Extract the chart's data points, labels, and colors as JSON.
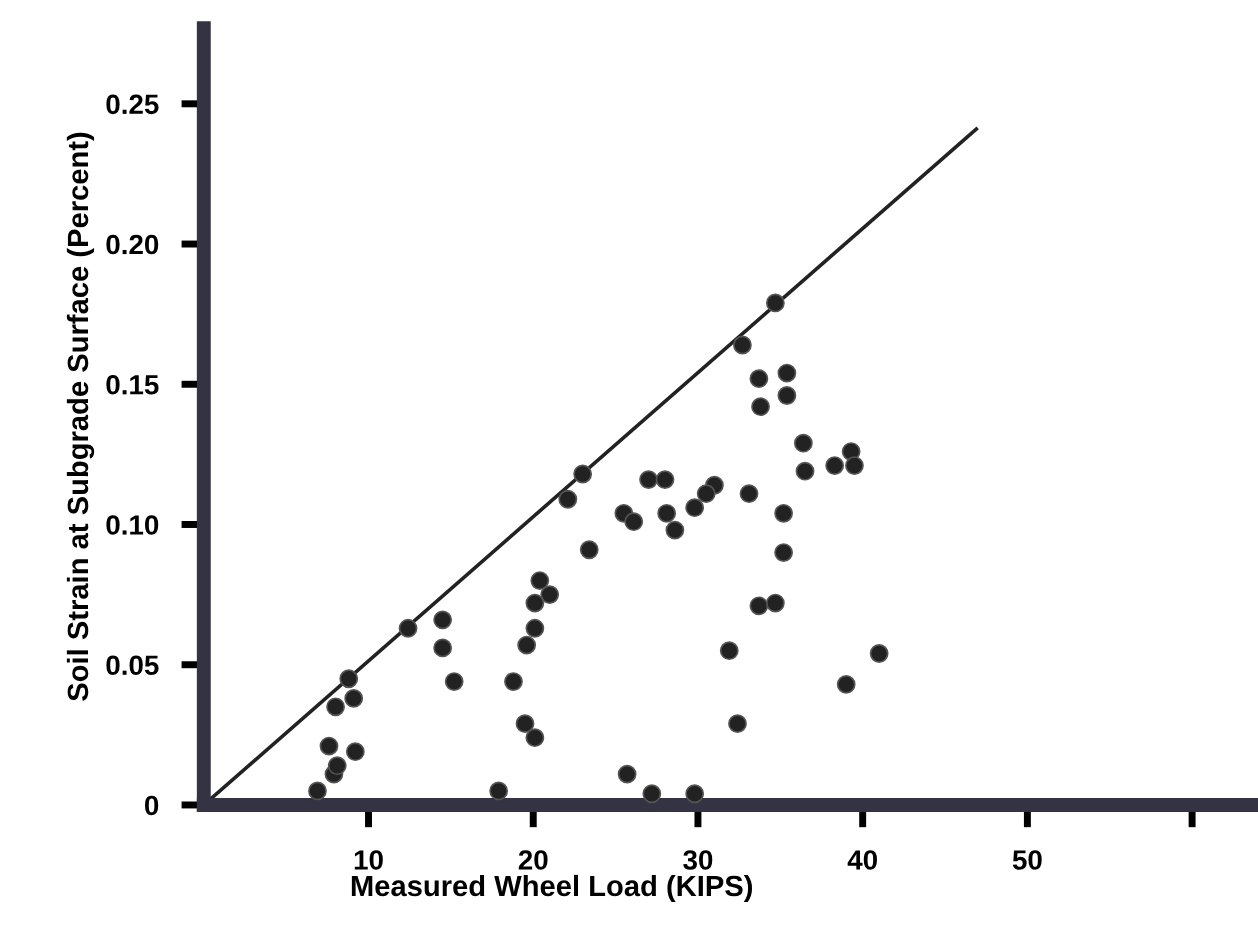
{
  "chart_data": {
    "type": "scatter",
    "xlabel": "Measured Wheel Load (KIPS)",
    "ylabel": "Soil Strain at Subgrade Surface (Percent)",
    "xlim": [
      0,
      64
    ],
    "ylim": [
      0,
      0.277
    ],
    "xticks": [
      10,
      20,
      30,
      40,
      50,
      {
        "value": 60,
        "label": null
      }
    ],
    "yticks": [
      0,
      {
        "value": 0.05,
        "label": "0.05"
      },
      {
        "value": 0.1,
        "label": "0.10"
      },
      {
        "value": 0.15,
        "label": "0.15"
      },
      {
        "value": 0.2,
        "label": "0.20"
      },
      {
        "value": 0.25,
        "label": "0.25"
      }
    ],
    "grid": false,
    "legend": false,
    "series": [
      {
        "marker": "circle",
        "color": "#222222",
        "x": [
          6.9,
          7.9,
          8.1,
          7.6,
          9.2,
          8.0,
          9.1,
          8.8,
          12.4,
          14.5,
          14.5,
          15.2,
          18.8,
          17.9,
          19.5,
          20.1,
          34.7,
          32.7,
          33.7,
          35.4,
          33.8,
          35.4,
          36.4,
          36.5,
          38.3,
          39.3,
          39.5,
          23.0,
          22.1,
          27.0,
          28.0,
          31.0,
          30.5,
          29.8,
          33.1,
          28.1,
          28.6,
          25.5,
          26.1,
          23.4,
          35.2,
          35.2,
          33.7,
          34.7,
          20.4,
          21.0,
          20.1,
          20.1,
          19.6,
          31.9,
          41.0,
          39.0,
          32.4,
          25.7,
          27.2,
          29.8
        ],
        "values": [
          0.005,
          0.011,
          0.014,
          0.021,
          0.019,
          0.035,
          0.038,
          0.045,
          0.063,
          0.066,
          0.056,
          0.044,
          0.044,
          0.005,
          0.029,
          0.024,
          0.179,
          0.164,
          0.152,
          0.154,
          0.142,
          0.146,
          0.129,
          0.119,
          0.121,
          0.126,
          0.121,
          0.118,
          0.109,
          0.116,
          0.116,
          0.114,
          0.111,
          0.106,
          0.111,
          0.104,
          0.098,
          0.104,
          0.101,
          0.091,
          0.104,
          0.09,
          0.071,
          0.072,
          0.08,
          0.075,
          0.072,
          0.063,
          0.057,
          0.055,
          0.054,
          0.043,
          0.029,
          0.011,
          0.004,
          0.004
        ]
      },
      {
        "type": "line",
        "color": "#222222",
        "x": [
          0,
          46.9
        ],
        "values": [
          0,
          0.241
        ]
      }
    ]
  }
}
